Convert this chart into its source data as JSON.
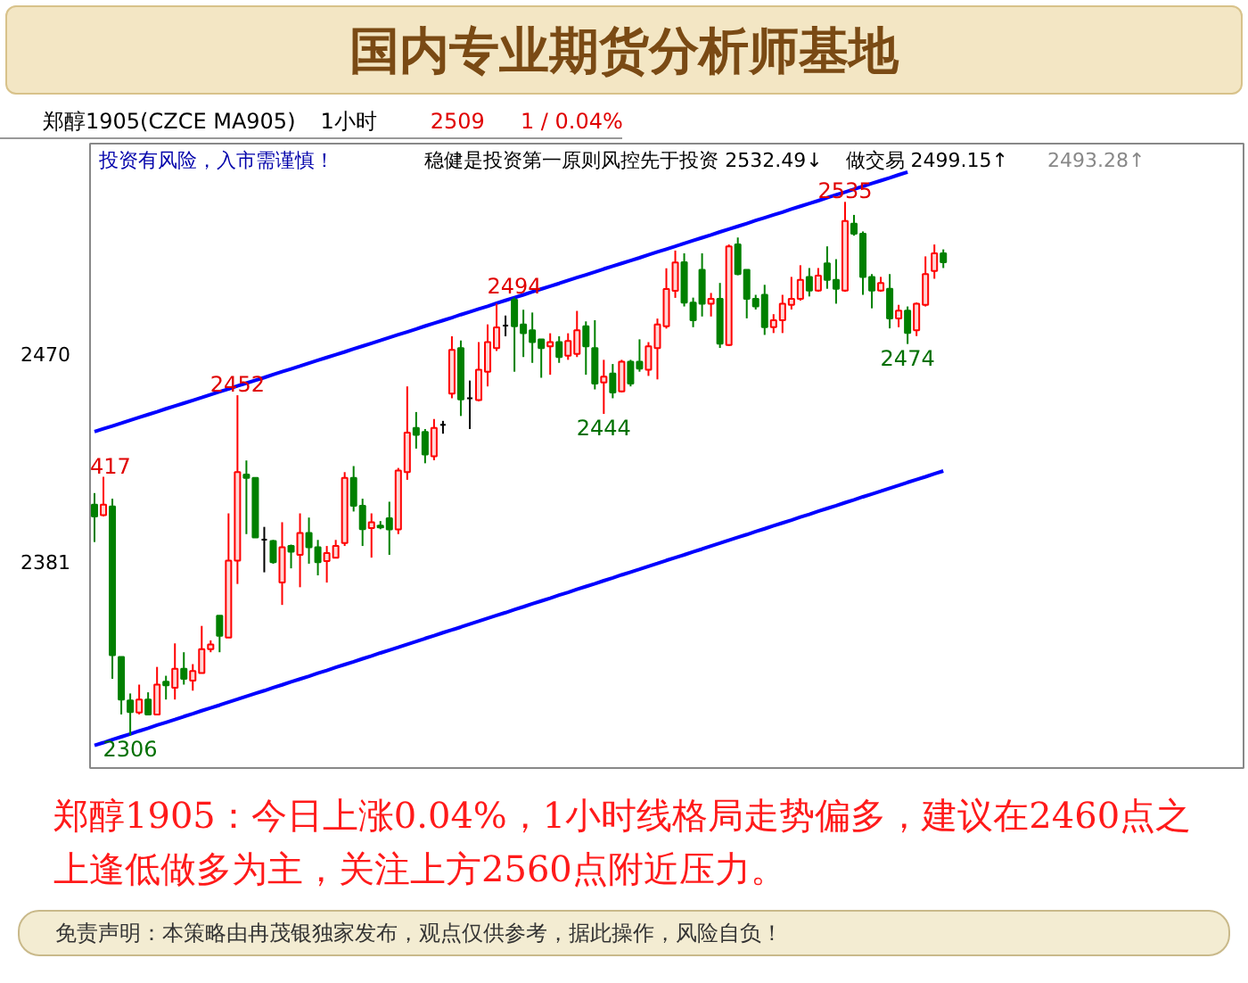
{
  "chart_data": {
    "type": "candlestick",
    "title": "国内专业期货分析师基地",
    "categories": [
      null,
      null,
      null,
      null,
      null,
      null,
      null,
      null,
      null,
      null,
      null,
      null,
      null,
      null,
      null,
      null,
      null,
      null,
      null,
      null,
      null,
      null,
      null,
      null,
      null,
      null,
      null,
      null,
      null,
      null,
      null,
      null,
      null,
      null,
      null,
      null,
      null,
      null,
      null,
      null,
      null,
      null,
      null,
      null,
      null,
      null,
      null,
      null,
      null,
      null,
      null,
      null,
      null,
      null,
      null,
      null,
      null,
      null,
      null,
      null,
      null,
      null,
      null,
      null,
      null,
      null,
      null,
      null,
      null,
      null,
      null,
      null,
      null,
      null,
      null,
      null,
      null,
      null,
      null,
      null,
      null,
      null,
      null,
      null,
      null,
      null,
      null,
      null,
      null,
      null,
      null,
      null,
      null,
      null,
      null,
      null
    ],
    "ohlc": [
      [
        2405,
        2410,
        2389,
        2400
      ],
      [
        2400.5,
        2417,
        2400,
        2405
      ],
      [
        2404.3,
        2407.6,
        2330.3,
        2340.4
      ],
      [
        2339.7,
        2339.7,
        2315,
        2321.4
      ],
      [
        2321,
        2324,
        2306,
        2316
      ],
      [
        2315.8,
        2327.8,
        2315,
        2321.4
      ],
      [
        2321.4,
        2324.5,
        2315,
        2315
      ],
      [
        2315,
        2335.4,
        2315,
        2327.8
      ],
      [
        2329,
        2331.6,
        2321.4,
        2327.5
      ],
      [
        2326.5,
        2345.5,
        2321.4,
        2334.6
      ],
      [
        2334.6,
        2341.7,
        2327.8,
        2330.3
      ],
      [
        2329.5,
        2336.6,
        2325.2,
        2333.6
      ],
      [
        2332.8,
        2353,
        2332.8,
        2343
      ],
      [
        2343,
        2346.8,
        2341.7,
        2345
      ],
      [
        2357.4,
        2357.4,
        2341.7,
        2348.8
      ],
      [
        2348,
        2401.3,
        2348,
        2381
      ],
      [
        2381,
        2452,
        2371,
        2419
      ],
      [
        2418,
        2424,
        2392.4,
        2416.5
      ],
      [
        2416.5,
        2416.5,
        2391,
        2391
      ],
      [
        2390,
        2395.5,
        2376,
        2390
      ],
      [
        2389.4,
        2389.9,
        2379.7,
        2380.3
      ],
      [
        2371.6,
        2397.5,
        2362,
        2386.8
      ],
      [
        2387.3,
        2387.9,
        2377.7,
        2384.8
      ],
      [
        2383.5,
        2401.3,
        2369.6,
        2392.9
      ],
      [
        2392.9,
        2399.5,
        2379.7,
        2386.8
      ],
      [
        2386.8,
        2389.9,
        2374.7,
        2380.3
      ],
      [
        2380.8,
        2387.3,
        2371.6,
        2384.3
      ],
      [
        2382.3,
        2389.9,
        2382.3,
        2387.3
      ],
      [
        2388.6,
        2419,
        2387.3,
        2416.5
      ],
      [
        2416.5,
        2421.6,
        2402.1,
        2404.6
      ],
      [
        2404.6,
        2407.6,
        2387.3,
        2394.5
      ],
      [
        2395,
        2401.3,
        2382.3,
        2397.5
      ],
      [
        2396,
        2398,
        2394.5,
        2395.3
      ],
      [
        2399.2,
        2406.3,
        2383.5,
        2394.4
      ],
      [
        2394.4,
        2420.8,
        2392.4,
        2419.7
      ],
      [
        2419,
        2455.8,
        2415.7,
        2436
      ],
      [
        2438,
        2444.8,
        2429.1,
        2435
      ],
      [
        2436.2,
        2437.5,
        2422.8,
        2426.6
      ],
      [
        2425.8,
        2441.8,
        2424.1,
        2438
      ],
      [
        2439.3,
        2441,
        2435.5,
        2439.3
      ],
      [
        2452.7,
        2477.3,
        2450.7,
        2471.5
      ],
      [
        2472.2,
        2475.5,
        2443.1,
        2450.2
      ],
      [
        2450.7,
        2458.3,
        2437.5,
        2450.7
      ],
      [
        2449.9,
        2474.8,
        2449.4,
        2462.9
      ],
      [
        2462.1,
        2482.4,
        2455.8,
        2474.8
      ],
      [
        2472.2,
        2491.3,
        2471,
        2481.1
      ],
      [
        2481.9,
        2486.2,
        2477.3,
        2481.9
      ],
      [
        2493,
        2494,
        2462.1,
        2481.6
      ],
      [
        2482.4,
        2488.7,
        2468.4,
        2478.6
      ],
      [
        2479.9,
        2487.5,
        2465.9,
        2474.8
      ],
      [
        2476,
        2476,
        2459.5,
        2472.2
      ],
      [
        2473,
        2478.6,
        2460.8,
        2474.8
      ],
      [
        2474.8,
        2477.3,
        2465.9,
        2468.4
      ],
      [
        2469,
        2478.6,
        2467.2,
        2475.3
      ],
      [
        2469.7,
        2488.2,
        2468.4,
        2479.9
      ],
      [
        2481.6,
        2483.7,
        2460.8,
        2473
      ],
      [
        2472.2,
        2484.2,
        2454.5,
        2457
      ],
      [
        2457.5,
        2467.2,
        2444,
        2460
      ],
      [
        2461.3,
        2465.4,
        2450.7,
        2453.2
      ],
      [
        2453.7,
        2467.2,
        2453.2,
        2466.4
      ],
      [
        2466.4,
        2467.2,
        2455.8,
        2457
      ],
      [
        2466.4,
        2476,
        2462.1,
        2463.4
      ],
      [
        2462.9,
        2474.8,
        2460.3,
        2473
      ],
      [
        2472.2,
        2484.9,
        2458.8,
        2482.4
      ],
      [
        2481.6,
        2506.5,
        2480.6,
        2497.6
      ],
      [
        2496.8,
        2514.1,
        2493.8,
        2509
      ],
      [
        2509.1,
        2512.9,
        2490.1,
        2491.8
      ],
      [
        2491.8,
        2493.9,
        2481.2,
        2484.2
      ],
      [
        2505.8,
        2512.9,
        2485.8,
        2491.3
      ],
      [
        2491.3,
        2495.9,
        2485.8,
        2493.4
      ],
      [
        2493.4,
        2500.2,
        2472.3,
        2474.1
      ],
      [
        2473.6,
        2516.7,
        2473.1,
        2515.9
      ],
      [
        2516.7,
        2519.7,
        2503.5,
        2504
      ],
      [
        2505.8,
        2505.8,
        2485,
        2493.4
      ],
      [
        2493.4,
        2495.1,
        2488.8,
        2490.1
      ],
      [
        2495.1,
        2499.4,
        2477.9,
        2481.2
      ],
      [
        2481.2,
        2486.8,
        2478.7,
        2484.2
      ],
      [
        2484.2,
        2495.1,
        2478.7,
        2491.3
      ],
      [
        2490.8,
        2502.8,
        2488.8,
        2493.4
      ],
      [
        2493.4,
        2507.8,
        2492.6,
        2501.5
      ],
      [
        2502.8,
        2506.6,
        2494.4,
        2496.9
      ],
      [
        2496.9,
        2506.6,
        2496.4,
        2503.3
      ],
      [
        2508.6,
        2515.9,
        2497.7,
        2501.5
      ],
      [
        2501.5,
        2510.4,
        2491.3,
        2497.7
      ],
      [
        2496.9,
        2535,
        2496.4,
        2526.8
      ],
      [
        2525.6,
        2529.4,
        2520.5,
        2521.3
      ],
      [
        2521.3,
        2522.3,
        2495.1,
        2502.8
      ],
      [
        2502.8,
        2504,
        2489.3,
        2496.9
      ],
      [
        2496.9,
        2502.8,
        2496.4,
        2500.2
      ],
      [
        2497.7,
        2504,
        2480.7,
        2485
      ],
      [
        2485,
        2490.8,
        2481.2,
        2488.3
      ],
      [
        2488.3,
        2490.1,
        2474,
        2478.7
      ],
      [
        2479.9,
        2491.8,
        2477.4,
        2491.3
      ],
      [
        2490.8,
        2511.6,
        2490.1,
        2504
      ],
      [
        2505.3,
        2516.7,
        2502,
        2512.9
      ],
      [
        2512.9,
        2514.6,
        2506.6,
        2509.1
      ]
    ],
    "colors": [
      "#008000",
      "#ff0000",
      "#008000",
      "#008000",
      "#008000",
      "#ff0000",
      "#008000",
      "#ff0000",
      "#008000",
      "#ff0000",
      "#008000",
      "#ff0000",
      "#ff0000",
      "#ff0000",
      "#008000",
      "#ff0000",
      "#ff0000",
      "#008000",
      "#008000",
      "#000000",
      "#008000",
      "#ff0000",
      "#008000",
      "#ff0000",
      "#008000",
      "#008000",
      "#ff0000",
      "#ff0000",
      "#ff0000",
      "#008000",
      "#008000",
      "#ff0000",
      "#008000",
      "#008000",
      "#ff0000",
      "#ff0000",
      "#008000",
      "#008000",
      "#ff0000",
      "#000000",
      "#ff0000",
      "#008000",
      "#000000",
      "#ff0000",
      "#ff0000",
      "#ff0000",
      "#000000",
      "#008000",
      "#008000",
      "#008000",
      "#008000",
      "#ff0000",
      "#008000",
      "#ff0000",
      "#ff0000",
      "#008000",
      "#008000",
      "#ff0000",
      "#008000",
      "#ff0000",
      "#008000",
      "#008000",
      "#ff0000",
      "#ff0000",
      "#ff0000",
      "#ff0000",
      "#008000",
      "#008000",
      "#008000",
      "#ff0000",
      "#008000",
      "#ff0000",
      "#008000",
      "#008000",
      "#008000",
      "#008000",
      "#ff0000",
      "#ff0000",
      "#ff0000",
      "#ff0000",
      "#008000",
      "#ff0000",
      "#008000",
      "#008000",
      "#ff0000",
      "#008000",
      "#008000",
      "#008000",
      "#ff0000",
      "#008000",
      "#ff0000",
      "#008000",
      "#ff0000",
      "#ff0000",
      "#ff0000",
      "#008000"
    ],
    "series": [
      {
        "type": "line",
        "color": "#0000ff",
        "values": [
          2436.4,
          2437.6,
          2438.8,
          2440.0,
          2441.3,
          2442.5,
          2443.7,
          2444.9,
          2446.2,
          2447.4,
          2448.6,
          2449.8,
          2451.0,
          2452.3,
          2453.5,
          2454.7,
          2456.0,
          2457.2,
          2458.4,
          2459.6,
          2460.9,
          2462.1,
          2463.3,
          2464.5,
          2465.8,
          2467.0,
          2468.2,
          2469.4,
          2470.6,
          2471.9,
          2473.1,
          2474.3,
          2475.5,
          2476.8,
          2478.0,
          2479.2,
          2480.4,
          2481.7,
          2482.9,
          2484.1,
          2485.3,
          2486.6,
          2487.8,
          2489.0,
          2490.2,
          2491.5,
          2492.7,
          2493.9,
          2495.1,
          2496.4,
          2497.6,
          2498.8,
          2500.0,
          2501.3,
          2502.5,
          2503.7,
          2504.9,
          2506.2,
          2507.4,
          2508.6,
          2509.8,
          2511.0,
          2512.3,
          2513.5,
          2514.7,
          2515.9,
          2517.2,
          2518.4,
          2519.6,
          2520.8,
          2522.1,
          2523.3,
          2524.5,
          2525.7,
          2527.0,
          2528.2,
          2529.4,
          2530.6,
          2531.9,
          2533.1,
          2534.3,
          2535.5,
          2536.8,
          2538.0,
          2539.2,
          2540.4,
          2541.7,
          2542.9,
          2544.1,
          2545.3,
          2546.6,
          2547.8,
          null,
          null,
          null,
          null
        ]
      },
      {
        "type": "line",
        "color": "#0000ff",
        "values": [
          2301.7,
          2302.9,
          2304.2,
          2305.4,
          2306.6,
          2307.9,
          2309.1,
          2310.4,
          2311.6,
          2312.8,
          2314.1,
          2315.3,
          2316.6,
          2317.8,
          2319.0,
          2320.3,
          2321.5,
          2322.8,
          2324.0,
          2325.2,
          2326.5,
          2327.7,
          2329.0,
          2330.2,
          2331.4,
          2332.7,
          2333.9,
          2335.2,
          2336.4,
          2337.6,
          2338.9,
          2340.1,
          2341.4,
          2342.6,
          2343.8,
          2345.1,
          2346.3,
          2347.6,
          2348.8,
          2350.1,
          2351.3,
          2352.5,
          2353.8,
          2355.0,
          2356.3,
          2357.5,
          2358.7,
          2360.0,
          2361.2,
          2362.5,
          2363.7,
          2364.9,
          2366.2,
          2367.4,
          2368.7,
          2369.9,
          2371.1,
          2372.4,
          2373.6,
          2374.9,
          2376.1,
          2377.3,
          2378.6,
          2379.8,
          2381.1,
          2382.3,
          2383.5,
          2384.8,
          2386.0,
          2387.3,
          2388.5,
          2389.8,
          2391.0,
          2392.2,
          2393.5,
          2394.7,
          2396.0,
          2397.2,
          2398.4,
          2399.7,
          2400.9,
          2402.2,
          2403.4,
          2404.6,
          2405.9,
          2407.1,
          2408.4,
          2409.6,
          2410.8,
          2412.1,
          2413.3,
          2414.6,
          2415.8,
          2417.0,
          2418.3,
          2419.5
        ]
      }
    ],
    "ylim": [
      2292,
      2560
    ],
    "yticks": [
      2381,
      2470
    ],
    "tick_labels": "y",
    "grid": false,
    "annotations": [
      "郑醇1905(CZCE MA905)",
      "1小时",
      "2509",
      "1 / 0.04%",
      "投资有风险，入市需谨慎！",
      "稳健是投资第一原则风控先于投资 2532.49↓",
      "做交易 2499.15↑",
      "2493.28↑",
      "郑醇1905：今日上涨0.04%，1小时线格局走势偏多，建议在2460点之上逢低做多为主，关注上方2560点附近压力。",
      "免责声明：本策略由冉茂银独家发布，观点仅供参考，据此操作，风险自负！",
      {
        "text": "417",
        "y": 2417
      },
      {
        "text": "2452",
        "y": 2452
      },
      {
        "text": "2306",
        "y": 2306
      },
      {
        "text": "2494",
        "y": 2494
      },
      {
        "text": "2444",
        "y": 2444
      },
      {
        "text": "2535",
        "y": 2535
      },
      {
        "text": "2474",
        "y": 2474
      }
    ]
  }
}
